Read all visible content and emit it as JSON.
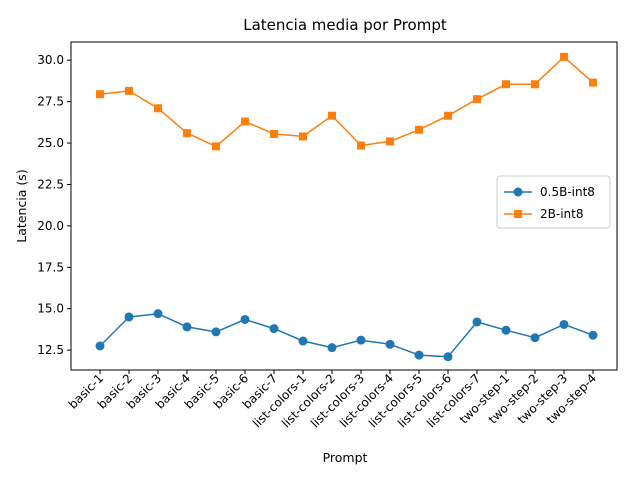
{
  "chart_data": {
    "type": "line",
    "title": "Latencia media por Prompt",
    "xlabel": "Prompt",
    "ylabel": "Latencia (s)",
    "categories": [
      "basic-1",
      "basic-2",
      "basic-3",
      "basic-4",
      "basic-5",
      "basic-6",
      "basic-7",
      "list-colors-1",
      "list-colors-2",
      "list-colors-3",
      "list-colors-4",
      "list-colors-5",
      "list-colors-6",
      "list-colors-7",
      "two-step-1",
      "two-step-2",
      "two-step-3",
      "two-step-4"
    ],
    "ylim": [
      11.3,
      31.1
    ],
    "yticks": [
      "12.5",
      "15.0",
      "17.5",
      "20.0",
      "22.5",
      "25.0",
      "27.5",
      "30.0"
    ],
    "grid": false,
    "legend_position": "center-right",
    "series": [
      {
        "name": "0.5B-int8",
        "color": "#1f77b4",
        "marker": "circle",
        "values": [
          12.75,
          14.5,
          14.7,
          13.9,
          13.6,
          14.35,
          13.8,
          13.05,
          12.65,
          13.1,
          12.85,
          12.2,
          12.1,
          14.2,
          13.7,
          13.25,
          14.05,
          13.4
        ]
      },
      {
        "name": "2B-int8",
        "color": "#ff7f0e",
        "marker": "square",
        "values": [
          27.95,
          28.15,
          27.1,
          25.6,
          24.8,
          26.3,
          25.55,
          25.4,
          26.65,
          24.85,
          25.1,
          25.8,
          26.65,
          27.65,
          28.55,
          28.55,
          30.2,
          28.65
        ]
      }
    ]
  }
}
